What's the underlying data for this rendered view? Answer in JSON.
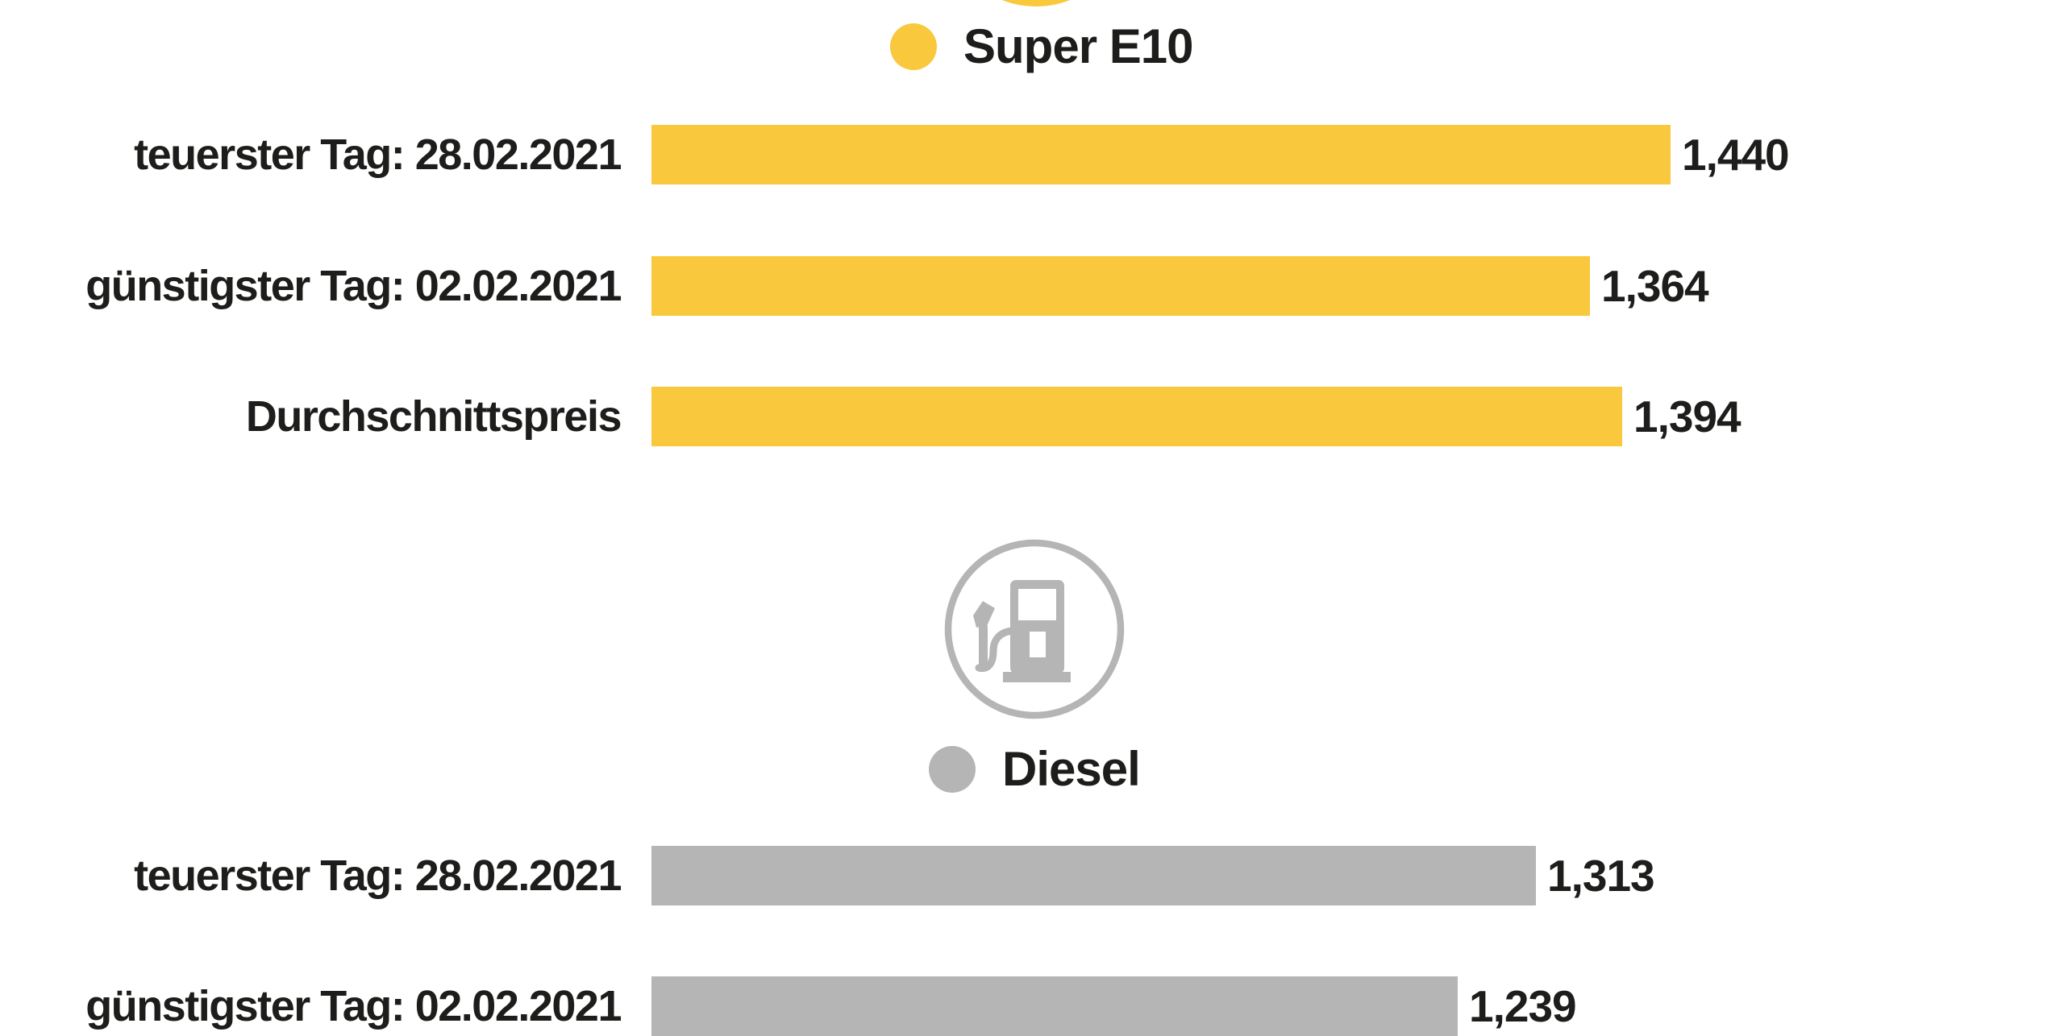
{
  "chart_data": {
    "type": "bar",
    "orientation": "horizontal",
    "title": "",
    "legend_position": "above-each-group",
    "grid": false,
    "colors": {
      "super_e10": "#F9C83C",
      "diesel": "#B5B5B5",
      "text": "#1D1D1B",
      "background": "#FFFFFF"
    },
    "groups": [
      {
        "fuel": "Super E10",
        "icon": "fuel-pump-icon",
        "color": "#F9C83C",
        "rows": [
          {
            "label": "teuerster Tag: 28.02.2021",
            "value": 1440,
            "value_display": "1,440"
          },
          {
            "label": "günstigster Tag: 02.02.2021",
            "value": 1364,
            "value_display": "1,364"
          },
          {
            "label": "Durchschnittspreis",
            "value": 1394,
            "value_display": "1,394"
          }
        ]
      },
      {
        "fuel": "Diesel",
        "icon": "fuel-pump-icon",
        "color": "#B5B5B5",
        "rows": [
          {
            "label": "teuerster Tag: 28.02.2021",
            "value": 1313,
            "value_display": "1,313"
          },
          {
            "label": "günstigster Tag: 02.02.2021",
            "value": 1239,
            "value_display": "1,239"
          }
        ]
      }
    ]
  }
}
